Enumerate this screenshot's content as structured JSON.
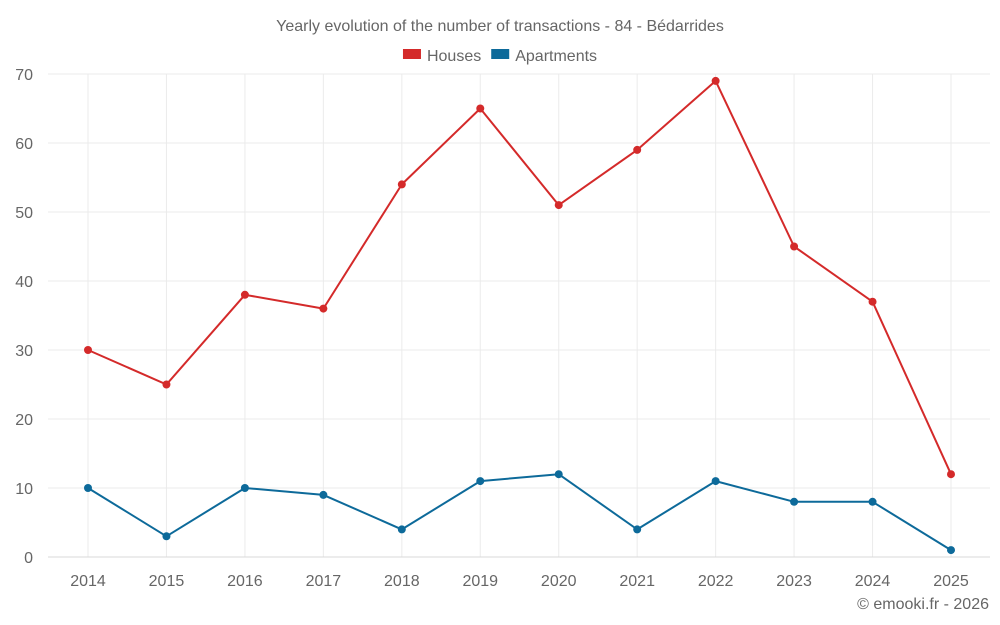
{
  "chart_data": {
    "type": "line",
    "title": "Yearly evolution of the number of transactions - 84 - Bédarrides",
    "categories": [
      "2014",
      "2015",
      "2016",
      "2017",
      "2018",
      "2019",
      "2020",
      "2021",
      "2022",
      "2023",
      "2024",
      "2025"
    ],
    "series": [
      {
        "name": "Houses",
        "color": "#d42a2a",
        "values": [
          30,
          25,
          38,
          36,
          54,
          65,
          51,
          59,
          69,
          45,
          37,
          12
        ]
      },
      {
        "name": "Apartments",
        "color": "#0d6a9a",
        "values": [
          10,
          3,
          10,
          9,
          4,
          11,
          12,
          4,
          11,
          8,
          8,
          1
        ]
      }
    ],
    "xlabel": "",
    "ylabel": "",
    "ylim": [
      0,
      70
    ],
    "yticks": [
      "0",
      "10",
      "20",
      "30",
      "40",
      "50",
      "60",
      "70"
    ],
    "legend_position": "top-center",
    "grid": true
  },
  "credit": "© emooki.fr - 2026"
}
